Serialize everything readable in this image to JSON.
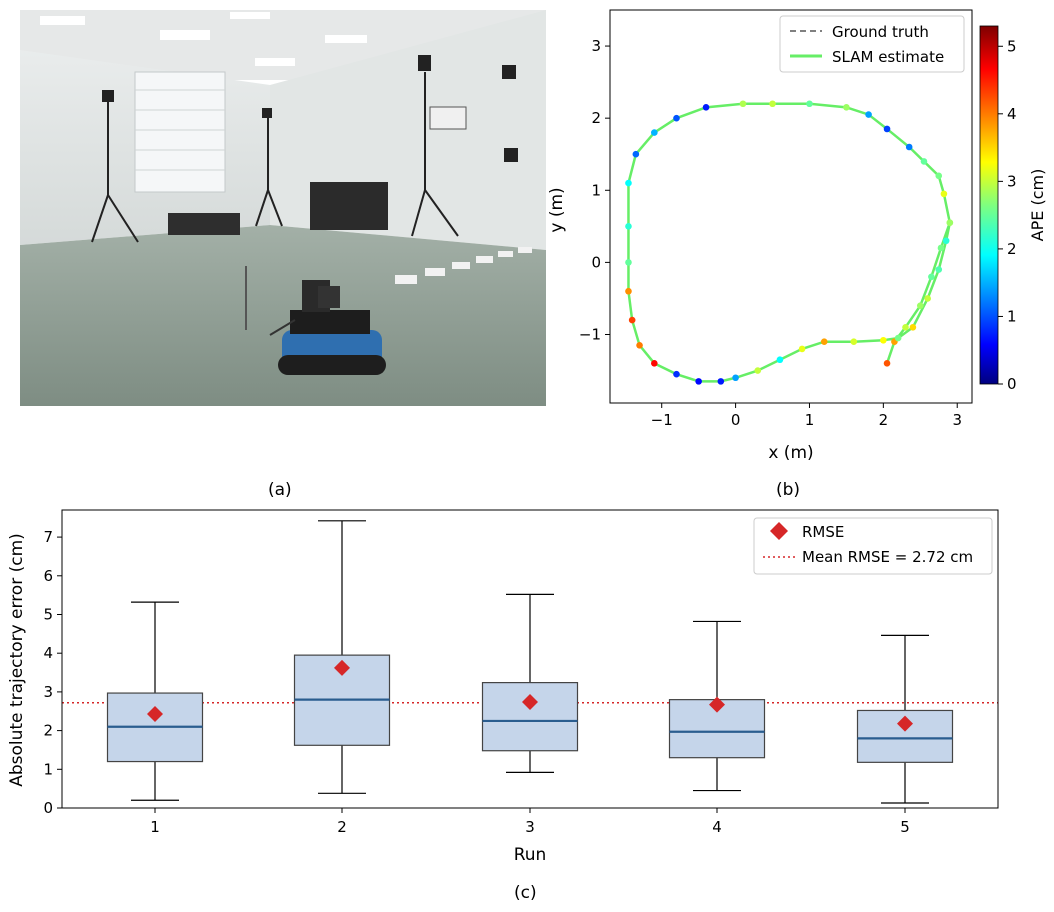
{
  "captions": {
    "a": "(a)",
    "b": "(b)",
    "c": "(c)"
  },
  "photo": {
    "subject": "ground robot in motion-capture lab",
    "wall_color": "#dfe3e3",
    "floor_color": "#8e9c92",
    "robot_color": "#2f6fb0"
  },
  "chart_data": [
    {
      "type": "line",
      "title": "",
      "xlabel": "x (m)",
      "ylabel": "y (m)",
      "xlim": [
        -1.7,
        3.2
      ],
      "ylim": [
        -1.95,
        3.5
      ],
      "xticks": [
        -1,
        0,
        1,
        2,
        3
      ],
      "yticks": [
        -1,
        0,
        1,
        2,
        3
      ],
      "xtick_labels": [
        "−1",
        "0",
        "1",
        "2",
        "3"
      ],
      "ytick_labels": [
        "−1",
        "0",
        "1",
        "2",
        "3"
      ],
      "grid": false,
      "legend_position": "top-right",
      "colorbar": {
        "label": "APE (cm)",
        "min": 0,
        "max": 5.3,
        "ticks": [
          0,
          1,
          2,
          3,
          4,
          5
        ],
        "tick_labels": [
          "0",
          "1",
          "2",
          "3",
          "4",
          "5"
        ],
        "colormap": "jet"
      },
      "series": [
        {
          "name": "Ground truth",
          "style": "dashed",
          "color": "#808080",
          "points": [
            [
              2.05,
              -1.4
            ],
            [
              2.15,
              -1.1
            ],
            [
              2.3,
              -0.9
            ],
            [
              2.5,
              -0.6
            ],
            [
              2.65,
              -0.2
            ],
            [
              2.78,
              0.2
            ],
            [
              2.9,
              0.55
            ],
            [
              2.82,
              0.95
            ],
            [
              2.75,
              1.2
            ],
            [
              2.55,
              1.4
            ],
            [
              2.35,
              1.6
            ],
            [
              2.05,
              1.85
            ],
            [
              1.8,
              2.05
            ],
            [
              1.5,
              2.15
            ],
            [
              1.0,
              2.2
            ],
            [
              0.5,
              2.2
            ],
            [
              0.1,
              2.2
            ],
            [
              -0.4,
              2.15
            ],
            [
              -0.8,
              2.0
            ],
            [
              -1.1,
              1.8
            ],
            [
              -1.35,
              1.5
            ],
            [
              -1.45,
              1.1
            ],
            [
              -1.45,
              0.5
            ],
            [
              -1.45,
              0.0
            ],
            [
              -1.45,
              -0.4
            ],
            [
              -1.4,
              -0.8
            ],
            [
              -1.3,
              -1.15
            ],
            [
              -1.1,
              -1.4
            ],
            [
              -0.8,
              -1.55
            ],
            [
              -0.5,
              -1.65
            ],
            [
              -0.2,
              -1.65
            ],
            [
              0.0,
              -1.6
            ],
            [
              0.3,
              -1.5
            ],
            [
              0.6,
              -1.35
            ],
            [
              0.9,
              -1.2
            ],
            [
              1.2,
              -1.1
            ],
            [
              1.6,
              -1.1
            ],
            [
              2.0,
              -1.08
            ],
            [
              2.2,
              -1.05
            ],
            [
              2.4,
              -0.9
            ],
            [
              2.6,
              -0.5
            ],
            [
              2.75,
              -0.1
            ],
            [
              2.85,
              0.3
            ],
            [
              2.9,
              0.55
            ]
          ]
        },
        {
          "name": "SLAM estimate",
          "style": "solid",
          "color": "#66ee66",
          "points": [
            [
              2.05,
              -1.4
            ],
            [
              2.15,
              -1.1
            ],
            [
              2.3,
              -0.9
            ],
            [
              2.5,
              -0.6
            ],
            [
              2.65,
              -0.2
            ],
            [
              2.78,
              0.2
            ],
            [
              2.9,
              0.55
            ],
            [
              2.82,
              0.95
            ],
            [
              2.75,
              1.2
            ],
            [
              2.55,
              1.4
            ],
            [
              2.35,
              1.6
            ],
            [
              2.05,
              1.85
            ],
            [
              1.8,
              2.05
            ],
            [
              1.5,
              2.15
            ],
            [
              1.0,
              2.2
            ],
            [
              0.5,
              2.2
            ],
            [
              0.1,
              2.2
            ],
            [
              -0.4,
              2.15
            ],
            [
              -0.8,
              2.0
            ],
            [
              -1.1,
              1.8
            ],
            [
              -1.35,
              1.5
            ],
            [
              -1.45,
              1.1
            ],
            [
              -1.45,
              0.5
            ],
            [
              -1.45,
              0.0
            ],
            [
              -1.45,
              -0.4
            ],
            [
              -1.4,
              -0.8
            ],
            [
              -1.3,
              -1.15
            ],
            [
              -1.1,
              -1.4
            ],
            [
              -0.8,
              -1.55
            ],
            [
              -0.5,
              -1.65
            ],
            [
              -0.2,
              -1.65
            ],
            [
              0.0,
              -1.6
            ],
            [
              0.3,
              -1.5
            ],
            [
              0.6,
              -1.35
            ],
            [
              0.9,
              -1.2
            ],
            [
              1.2,
              -1.1
            ],
            [
              1.6,
              -1.1
            ],
            [
              2.0,
              -1.08
            ],
            [
              2.2,
              -1.05
            ],
            [
              2.4,
              -0.9
            ],
            [
              2.6,
              -0.5
            ],
            [
              2.75,
              -0.1
            ],
            [
              2.85,
              0.3
            ],
            [
              2.9,
              0.55
            ]
          ],
          "ape": [
            4.2,
            3.8,
            3.0,
            2.8,
            2.5,
            2.6,
            2.9,
            3.2,
            2.6,
            2.5,
            1.3,
            1.0,
            1.5,
            2.8,
            2.5,
            3.0,
            2.9,
            0.8,
            1.1,
            1.6,
            1.2,
            2.0,
            2.2,
            2.5,
            3.9,
            4.3,
            4.0,
            4.6,
            0.9,
            0.7,
            0.8,
            1.5,
            3.0,
            2.0,
            3.2,
            3.8,
            3.1,
            3.3,
            2.6,
            3.5,
            3.0,
            2.4,
            2.2,
            2.8
          ]
        }
      ]
    },
    {
      "type": "box",
      "title": "",
      "xlabel": "Run",
      "ylabel": "Absolute trajectory error (cm)",
      "categories": [
        "1",
        "2",
        "3",
        "4",
        "5"
      ],
      "ylim": [
        0,
        7.7
      ],
      "yticks": [
        0,
        1,
        2,
        3,
        4,
        5,
        6,
        7
      ],
      "ytick_labels": [
        "0",
        "1",
        "2",
        "3",
        "4",
        "5",
        "6",
        "7"
      ],
      "grid": false,
      "legend_position": "top-right",
      "box_fill": "#c5d5ea",
      "median_color": "#2a5d8f",
      "boxes": [
        {
          "whislo": 0.2,
          "q1": 1.2,
          "med": 2.1,
          "q3": 2.97,
          "whishi": 5.32,
          "rmse": 2.43
        },
        {
          "whislo": 0.38,
          "q1": 1.62,
          "med": 2.8,
          "q3": 3.95,
          "whishi": 7.42,
          "rmse": 3.62
        },
        {
          "whislo": 0.92,
          "q1": 1.48,
          "med": 2.25,
          "q3": 3.24,
          "whishi": 5.52,
          "rmse": 2.74
        },
        {
          "whislo": 0.45,
          "q1": 1.3,
          "med": 1.97,
          "q3": 2.8,
          "whishi": 4.82,
          "rmse": 2.67
        },
        {
          "whislo": 0.13,
          "q1": 1.18,
          "med": 1.8,
          "q3": 2.52,
          "whishi": 4.46,
          "rmse": 2.18
        }
      ],
      "mean_rmse": 2.72,
      "legend": [
        {
          "name": "RMSE",
          "marker": "diamond",
          "color": "#d62728"
        },
        {
          "name": "Mean RMSE = 2.72 cm",
          "style": "dotted",
          "color": "#d62728"
        }
      ]
    }
  ]
}
